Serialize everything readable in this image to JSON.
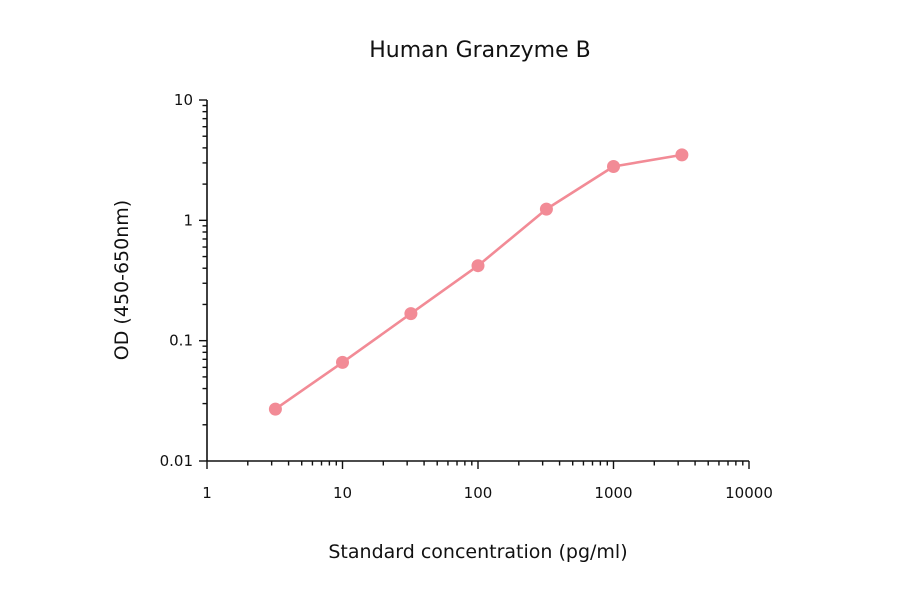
{
  "chart_data": {
    "type": "line",
    "title": "Human Granzyme B",
    "xlabel": "Standard concentration (pg/ml)",
    "ylabel": "OD (450-650nm)",
    "x_scale": "log",
    "y_scale": "log",
    "xlim": [
      1,
      10000
    ],
    "ylim": [
      0.01,
      10
    ],
    "x_ticks": [
      "1",
      "10",
      "100",
      "1000",
      "10000"
    ],
    "y_ticks": [
      "0.01",
      "0.1",
      "1",
      "10"
    ],
    "grid": false,
    "series": [
      {
        "color": "#f28b96",
        "x": [
          3.2,
          10,
          32,
          100,
          320,
          1000,
          3200
        ],
        "y": [
          0.027,
          0.066,
          0.168,
          0.42,
          1.24,
          2.8,
          3.5
        ]
      }
    ]
  }
}
